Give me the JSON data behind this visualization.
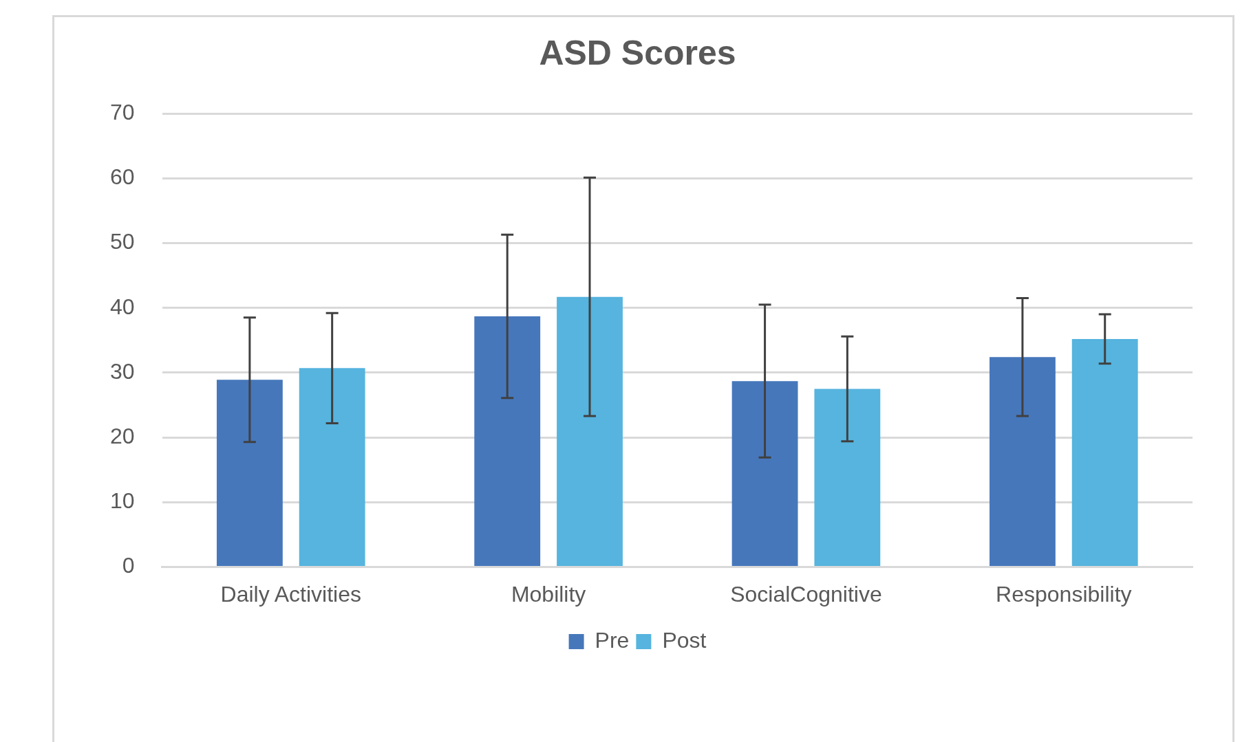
{
  "chart_data": {
    "type": "bar",
    "title": "ASD Scores",
    "categories": [
      "Daily Activities",
      "Mobility",
      "SocialCognitive",
      "Responsibility"
    ],
    "series": [
      {
        "name": "Pre",
        "color": "#4677bb",
        "values": [
          28.9,
          38.7,
          28.7,
          32.4
        ],
        "errors": [
          9.6,
          12.6,
          11.8,
          9.1
        ]
      },
      {
        "name": "Post",
        "color": "#56b4de",
        "values": [
          30.7,
          41.7,
          27.5,
          35.2
        ],
        "errors": [
          8.5,
          18.4,
          8.1,
          3.8
        ]
      }
    ],
    "ylim": [
      0,
      70
    ],
    "yticks": [
      0,
      10,
      20,
      30,
      40,
      50,
      60,
      70
    ],
    "grid": "y",
    "legend": "bottom"
  }
}
